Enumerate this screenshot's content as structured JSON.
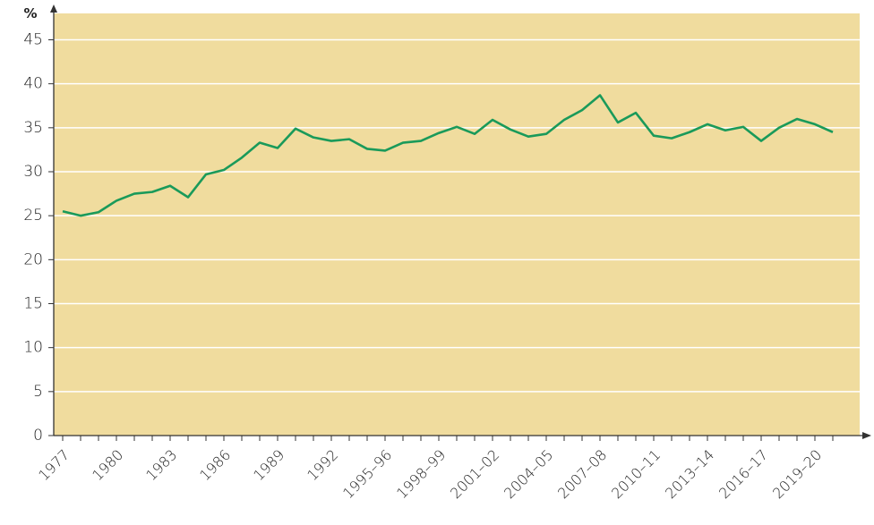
{
  "chart_data": {
    "type": "line",
    "y_label": "%",
    "categories": [
      "1977",
      null,
      null,
      "1980",
      null,
      null,
      "1983",
      null,
      null,
      "1986",
      null,
      null,
      "1989",
      null,
      null,
      "1992",
      null,
      null,
      "1995–96",
      null,
      null,
      "1998–99",
      null,
      null,
      "2001–02",
      null,
      null,
      "2004–05",
      null,
      null,
      "2007–08",
      null,
      null,
      "2010–11",
      null,
      null,
      "2013–14",
      null,
      null,
      "2016–17",
      null,
      null,
      "2019–20",
      null
    ],
    "values": [
      25.5,
      25.0,
      25.4,
      26.7,
      27.5,
      27.7,
      28.4,
      27.1,
      29.7,
      30.2,
      31.6,
      33.3,
      32.7,
      34.9,
      33.9,
      33.5,
      33.7,
      32.6,
      32.4,
      33.3,
      33.5,
      34.4,
      35.1,
      34.3,
      35.9,
      34.8,
      34.0,
      34.3,
      35.9,
      37.0,
      38.7,
      35.6,
      36.7,
      34.1,
      33.8,
      34.5,
      35.4,
      34.7,
      35.1,
      33.5,
      35.0,
      36.0,
      35.4,
      34.5
    ],
    "color": "#1a9a5a",
    "background": "#f0dc9e",
    "ylim": [
      0,
      48
    ],
    "yticks": [
      0,
      5,
      10,
      15,
      20,
      25,
      30,
      35,
      40,
      45
    ],
    "grid": true
  }
}
